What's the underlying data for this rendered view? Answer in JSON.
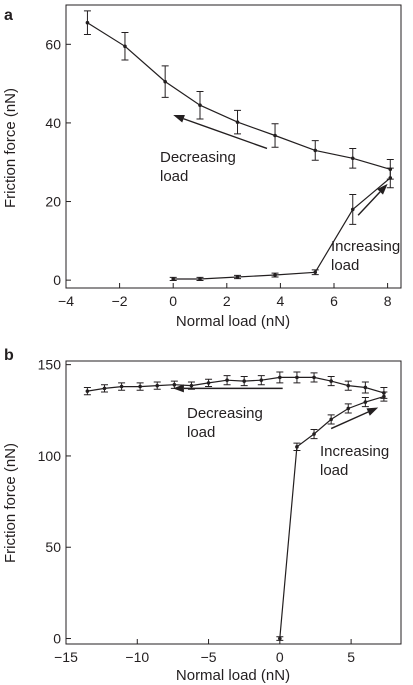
{
  "chart_data": [
    {
      "type": "line",
      "panel_label": "a",
      "xlabel": "Normal load (nN)",
      "ylabel": "Friction force (nN)",
      "xlim": [
        -4,
        8.5
      ],
      "ylim": [
        -2,
        70
      ],
      "xticks": [
        -4,
        -2,
        0,
        2,
        4,
        6,
        8
      ],
      "yticks": [
        0,
        20,
        40,
        60
      ],
      "grid": false,
      "series": [
        {
          "x": [
            -3.2,
            -1.8,
            -0.3,
            1.0,
            2.4,
            3.8,
            5.3,
            6.7,
            8.1
          ],
          "y": [
            65.5,
            59.5,
            50.5,
            44.5,
            40.2,
            36.8,
            33.0,
            31.0,
            28.2
          ],
          "err": [
            3.0,
            3.5,
            4.0,
            3.5,
            3.0,
            3.0,
            2.5,
            2.5,
            2.5
          ]
        },
        {
          "x": [
            0.0,
            1.0,
            2.4,
            3.8,
            5.3,
            6.7,
            8.1
          ],
          "y": [
            0.3,
            0.3,
            0.8,
            1.3,
            2.0,
            18.0,
            26.0
          ],
          "err": [
            0.4,
            0.4,
            0.4,
            0.5,
            0.6,
            3.8,
            2.5
          ]
        }
      ],
      "annotations": [
        {
          "lines": [
            "Decreasing",
            "load"
          ],
          "arrow_from": [
            3.5,
            33.5
          ],
          "arrow_to": [
            0.0,
            42.0
          ]
        },
        {
          "lines": [
            "Increasing",
            "load"
          ],
          "arrow_from": [
            6.9,
            16.5
          ],
          "arrow_to": [
            8.0,
            24.5
          ]
        }
      ]
    },
    {
      "type": "line",
      "panel_label": "b",
      "xlabel": "Normal load (nN)",
      "ylabel": "Friction force (nN)",
      "xlim": [
        -15,
        8.5
      ],
      "ylim": [
        -3,
        152
      ],
      "xticks": [
        -15,
        -10,
        -5,
        0,
        5
      ],
      "yticks": [
        0,
        50,
        100,
        150
      ],
      "grid": false,
      "series": [
        {
          "x": [
            -13.5,
            -12.3,
            -11.1,
            -9.8,
            -8.6,
            -7.4,
            -6.2,
            -5.0,
            -3.7,
            -2.5,
            -1.3,
            0.0,
            1.2,
            2.4,
            3.6,
            4.8,
            6.0,
            7.3
          ],
          "y": [
            135.5,
            137.0,
            138.0,
            138.0,
            138.5,
            139.0,
            138.5,
            140.0,
            141.5,
            141.0,
            141.5,
            143.0,
            143.0,
            143.0,
            141.0,
            138.5,
            137.5,
            134.5
          ],
          "err": [
            2.0,
            2.0,
            2.0,
            2.0,
            2.0,
            2.0,
            2.0,
            2.0,
            2.5,
            2.5,
            2.5,
            3.0,
            3.0,
            2.5,
            2.5,
            2.5,
            3.0,
            3.0
          ]
        },
        {
          "x": [
            0.0,
            1.2,
            2.4,
            3.6,
            4.8,
            6.0,
            7.3
          ],
          "y": [
            0.0,
            105.0,
            112.0,
            120.0,
            126.0,
            129.5,
            132.5
          ],
          "err": [
            1.0,
            2.0,
            2.5,
            2.5,
            2.5,
            2.5,
            2.5
          ]
        }
      ],
      "annotations": [
        {
          "lines": [
            "Decreasing",
            "load"
          ],
          "arrow_from": [
            0.2,
            137.0
          ],
          "arrow_to": [
            -7.5,
            137.0
          ]
        },
        {
          "lines": [
            "Increasing",
            "load"
          ],
          "arrow_from": [
            3.6,
            115.0
          ],
          "arrow_to": [
            6.9,
            126.5
          ]
        }
      ]
    }
  ]
}
